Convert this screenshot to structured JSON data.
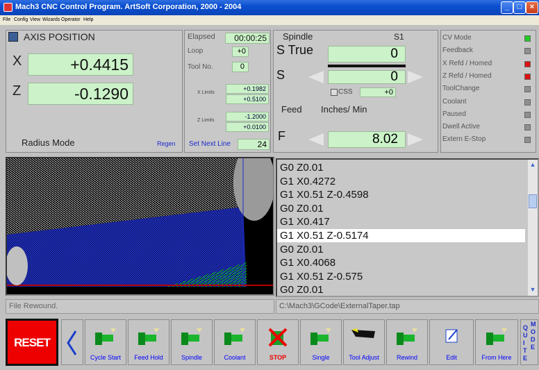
{
  "window": {
    "title": "Mach3 CNC Control Program. ArtSoft Corporation, 2000 - 2004"
  },
  "menu": [
    "File",
    "Config",
    "View",
    "Wizards",
    "Operator",
    "Help"
  ],
  "axis": {
    "header": "AXIS POSITION",
    "x_label": "X",
    "x_value": "+0.4415",
    "z_label": "Z",
    "z_value": "-0.1290",
    "mode": "Radius Mode",
    "regen": "Regen"
  },
  "timer": {
    "elapsed_label": "Elapsed",
    "elapsed": "00:00:25",
    "loop_label": "Loop",
    "loop": "+0",
    "toolno_label": "Tool No.",
    "toolno": "0",
    "xlimits_label": "X Limits",
    "xlim_hi": "+0.1982",
    "xlim_lo": "+0.5100",
    "zlimits_label": "Z Limits",
    "zlim_hi": "-1.2000",
    "zlim_lo": "+0.0100",
    "set_next_line": "Set Next Line",
    "next_line": "24"
  },
  "spindle": {
    "header": "Spindle",
    "s1": "S1",
    "s_true_label": "S True",
    "s_true": "0",
    "s_label": "S",
    "s_value": "0",
    "css_label": "CSS",
    "css_value": "+0",
    "feed_label": "Feed",
    "feed_units": "Inches/ Min",
    "f_label": "F",
    "f_value": "8.02"
  },
  "status": {
    "items": [
      {
        "label": "CV Mode",
        "color": "#22cc22"
      },
      {
        "label": "Feedback",
        "color": "#909090"
      },
      {
        "label": "X Refd / Homed",
        "color": "#dd1111"
      },
      {
        "label": "Z Refd / Homed",
        "color": "#dd1111"
      },
      {
        "label": "ToolChange",
        "color": "#909090"
      },
      {
        "label": "Coolant",
        "color": "#909090"
      },
      {
        "label": "Paused",
        "color": "#909090"
      },
      {
        "label": "Dwell Active",
        "color": "#909090"
      },
      {
        "label": "Extern E-Stop",
        "color": "#909090"
      }
    ]
  },
  "gcode": {
    "lines": [
      "G0 Z0.01",
      "G1 X0.4272",
      "G1 X0.51 Z-0.4598",
      "G0 Z0.01",
      "G1 X0.417",
      "G1 X0.51 Z-0.5174",
      "G0 Z0.01",
      "G1 X0.4068",
      "G1 X0.51 Z-0.575",
      "G0 Z0.01"
    ],
    "current_index": 5
  },
  "statusline": {
    "message": "File Rewound.",
    "file": "C:\\Mach3\\GCode\\ExternalTaper.tap"
  },
  "toolbar": {
    "reset": "RESET",
    "buttons": [
      "Cycle Start",
      "Feed Hold",
      "Spindle",
      "Coolant",
      "STOP",
      "Single",
      "Tool Adjust",
      "Rewind",
      "Edit",
      "From Here"
    ],
    "quote": [
      "Q",
      "U",
      "I",
      "T",
      "E"
    ],
    "mode": [
      "M",
      "O",
      "D",
      "E"
    ]
  }
}
